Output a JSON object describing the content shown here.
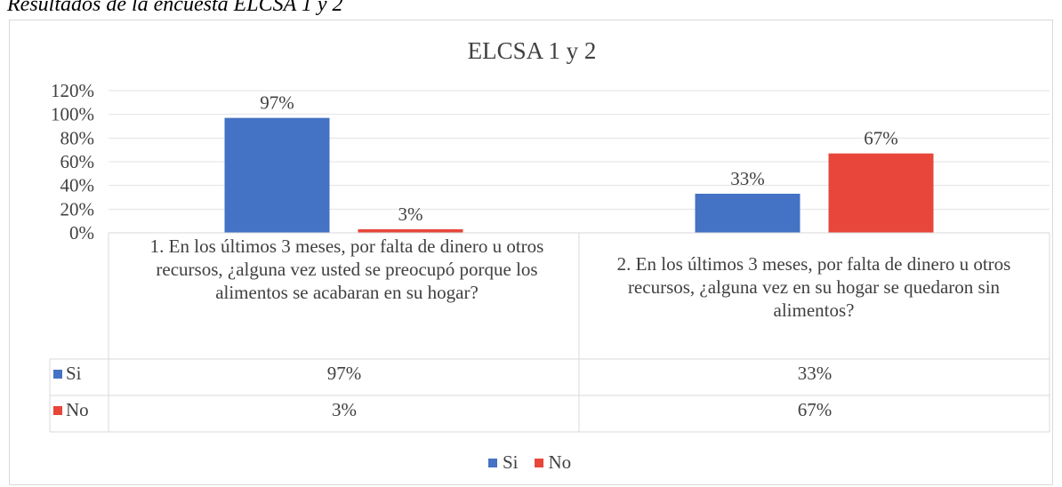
{
  "caption": "Resultados de la encuesta ELCSA 1 y 2",
  "chart_data": {
    "type": "bar",
    "title": "ELCSA 1 y 2",
    "categories": [
      "1. En los últimos 3 meses, por falta de dinero u otros recursos, ¿alguna vez usted se preocupó porque los alimentos se acabaran en su hogar?",
      "2. En los últimos 3 meses, por falta de dinero u otros recursos, ¿alguna vez en su hogar se quedaron sin alimentos?"
    ],
    "series": [
      {
        "name": "Si",
        "values": [
          97,
          33
        ],
        "labels": [
          "97%",
          "33%"
        ],
        "color": "#4472c4"
      },
      {
        "name": "No",
        "values": [
          3,
          67
        ],
        "labels": [
          "3%",
          "67%"
        ],
        "color": "#e8463a"
      }
    ],
    "ylim": [
      0,
      120
    ],
    "yticks": [
      "0%",
      "20%",
      "40%",
      "60%",
      "80%",
      "100%",
      "120%"
    ],
    "grid": true,
    "data_table": true,
    "legend": "bottom"
  }
}
